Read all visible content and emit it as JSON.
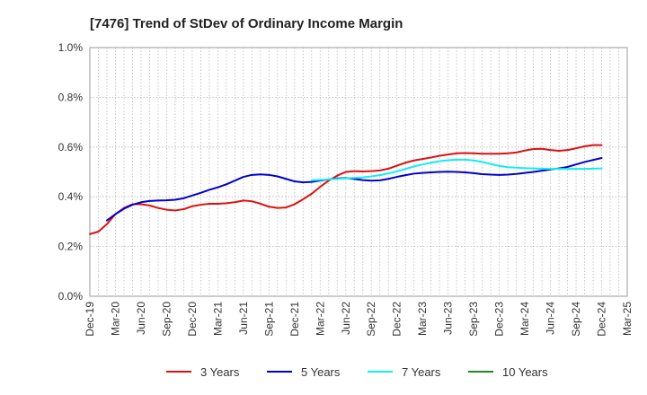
{
  "chart_data": {
    "type": "line",
    "title": "[7476]  Trend of StDev of Ordinary Income Margin",
    "xlabel": "",
    "ylabel": "",
    "x_tick_labels": [
      "Dec-19",
      "Mar-20",
      "Jun-20",
      "Sep-20",
      "Dec-20",
      "Mar-21",
      "Jun-21",
      "Sep-21",
      "Dec-21",
      "Mar-22",
      "Jun-22",
      "Sep-22",
      "Dec-22",
      "Mar-23",
      "Jun-23",
      "Sep-23",
      "Dec-23",
      "Mar-24",
      "Jun-24",
      "Sep-24",
      "Dec-24",
      "Mar-25"
    ],
    "y_tick_labels": [
      "0.0%",
      "0.2%",
      "0.4%",
      "0.6%",
      "0.8%",
      "1.0%"
    ],
    "ylim": [
      0,
      1.0
    ],
    "grid": true,
    "legend_position": "bottom",
    "series": [
      {
        "name": "3 Years",
        "color": "#dd1111",
        "x": [
          "Dec-19",
          "Jan-20",
          "Feb-20",
          "Mar-20",
          "Apr-20",
          "May-20",
          "Jun-20",
          "Jul-20",
          "Aug-20",
          "Sep-20",
          "Oct-20",
          "Nov-20",
          "Dec-20",
          "Jan-21",
          "Feb-21",
          "Mar-21",
          "Apr-21",
          "May-21",
          "Jun-21",
          "Jul-21",
          "Aug-21",
          "Sep-21",
          "Oct-21",
          "Nov-21",
          "Dec-21",
          "Jan-22",
          "Feb-22",
          "Mar-22",
          "Apr-22",
          "May-22",
          "Jun-22",
          "Jul-22",
          "Aug-22",
          "Sep-22",
          "Oct-22",
          "Nov-22",
          "Dec-22",
          "Jan-23",
          "Feb-23",
          "Mar-23",
          "Apr-23",
          "May-23",
          "Jun-23",
          "Jul-23",
          "Aug-23",
          "Sep-23",
          "Oct-23",
          "Nov-23",
          "Dec-23",
          "Jan-24",
          "Feb-24",
          "Mar-24",
          "Apr-24",
          "May-24",
          "Jun-24",
          "Jul-24",
          "Aug-24",
          "Sep-24",
          "Oct-24",
          "Nov-24",
          "Dec-24"
        ],
        "values": [
          0.25,
          0.26,
          0.29,
          0.33,
          0.355,
          0.37,
          0.37,
          0.365,
          0.355,
          0.348,
          0.345,
          0.35,
          0.362,
          0.368,
          0.372,
          0.372,
          0.374,
          0.378,
          0.385,
          0.382,
          0.372,
          0.36,
          0.355,
          0.357,
          0.37,
          0.39,
          0.412,
          0.44,
          0.465,
          0.485,
          0.5,
          0.503,
          0.502,
          0.503,
          0.506,
          0.513,
          0.525,
          0.537,
          0.546,
          0.552,
          0.558,
          0.565,
          0.57,
          0.575,
          0.576,
          0.575,
          0.573,
          0.573,
          0.573,
          0.575,
          0.578,
          0.586,
          0.592,
          0.593,
          0.588,
          0.585,
          0.588,
          0.595,
          0.603,
          0.608,
          0.608
        ]
      },
      {
        "name": "5 Years",
        "color": "#0000cc",
        "x": [
          "Feb-20",
          "Mar-20",
          "Apr-20",
          "May-20",
          "Jun-20",
          "Jul-20",
          "Aug-20",
          "Sep-20",
          "Oct-20",
          "Nov-20",
          "Dec-20",
          "Jan-21",
          "Feb-21",
          "Mar-21",
          "Apr-21",
          "May-21",
          "Jun-21",
          "Jul-21",
          "Aug-21",
          "Sep-21",
          "Oct-21",
          "Nov-21",
          "Dec-21",
          "Jan-22",
          "Feb-22",
          "Mar-22",
          "Apr-22",
          "May-22",
          "Jun-22",
          "Jul-22",
          "Aug-22",
          "Sep-22",
          "Oct-22",
          "Nov-22",
          "Dec-22",
          "Jan-23",
          "Feb-23",
          "Mar-23",
          "Apr-23",
          "May-23",
          "Jun-23",
          "Jul-23",
          "Aug-23",
          "Sep-23",
          "Oct-23",
          "Nov-23",
          "Dec-23",
          "Jan-24",
          "Feb-24",
          "Mar-24",
          "Apr-24",
          "May-24",
          "Jun-24",
          "Jul-24",
          "Aug-24",
          "Sep-24",
          "Oct-24",
          "Nov-24",
          "Dec-24"
        ],
        "values": [
          0.305,
          0.33,
          0.352,
          0.368,
          0.378,
          0.383,
          0.385,
          0.386,
          0.388,
          0.394,
          0.405,
          0.416,
          0.428,
          0.438,
          0.45,
          0.465,
          0.48,
          0.488,
          0.49,
          0.488,
          0.482,
          0.472,
          0.462,
          0.458,
          0.46,
          0.465,
          0.47,
          0.474,
          0.475,
          0.472,
          0.467,
          0.465,
          0.466,
          0.472,
          0.48,
          0.487,
          0.493,
          0.496,
          0.498,
          0.5,
          0.501,
          0.5,
          0.498,
          0.495,
          0.491,
          0.489,
          0.488,
          0.489,
          0.492,
          0.496,
          0.5,
          0.505,
          0.51,
          0.514,
          0.52,
          0.53,
          0.54,
          0.548,
          0.556
        ]
      },
      {
        "name": "7 Years",
        "color": "#11eeee",
        "x": [
          "Feb-22",
          "Mar-22",
          "Apr-22",
          "May-22",
          "Jun-22",
          "Jul-22",
          "Aug-22",
          "Sep-22",
          "Oct-22",
          "Nov-22",
          "Dec-22",
          "Jan-23",
          "Feb-23",
          "Mar-23",
          "Apr-23",
          "May-23",
          "Jun-23",
          "Jul-23",
          "Aug-23",
          "Sep-23",
          "Oct-23",
          "Nov-23",
          "Dec-23",
          "Jan-24",
          "Feb-24",
          "Mar-24",
          "Apr-24",
          "May-24",
          "Jun-24",
          "Jul-24",
          "Aug-24",
          "Sep-24",
          "Oct-24",
          "Nov-24",
          "Dec-24"
        ],
        "values": [
          0.466,
          0.468,
          0.47,
          0.472,
          0.474,
          0.476,
          0.478,
          0.482,
          0.487,
          0.494,
          0.502,
          0.512,
          0.522,
          0.53,
          0.537,
          0.543,
          0.547,
          0.549,
          0.549,
          0.546,
          0.54,
          0.532,
          0.524,
          0.519,
          0.517,
          0.515,
          0.514,
          0.513,
          0.512,
          0.512,
          0.512,
          0.512,
          0.512,
          0.513,
          0.514
        ]
      },
      {
        "name": "10 Years",
        "color": "#228822",
        "x": [],
        "values": []
      }
    ]
  }
}
